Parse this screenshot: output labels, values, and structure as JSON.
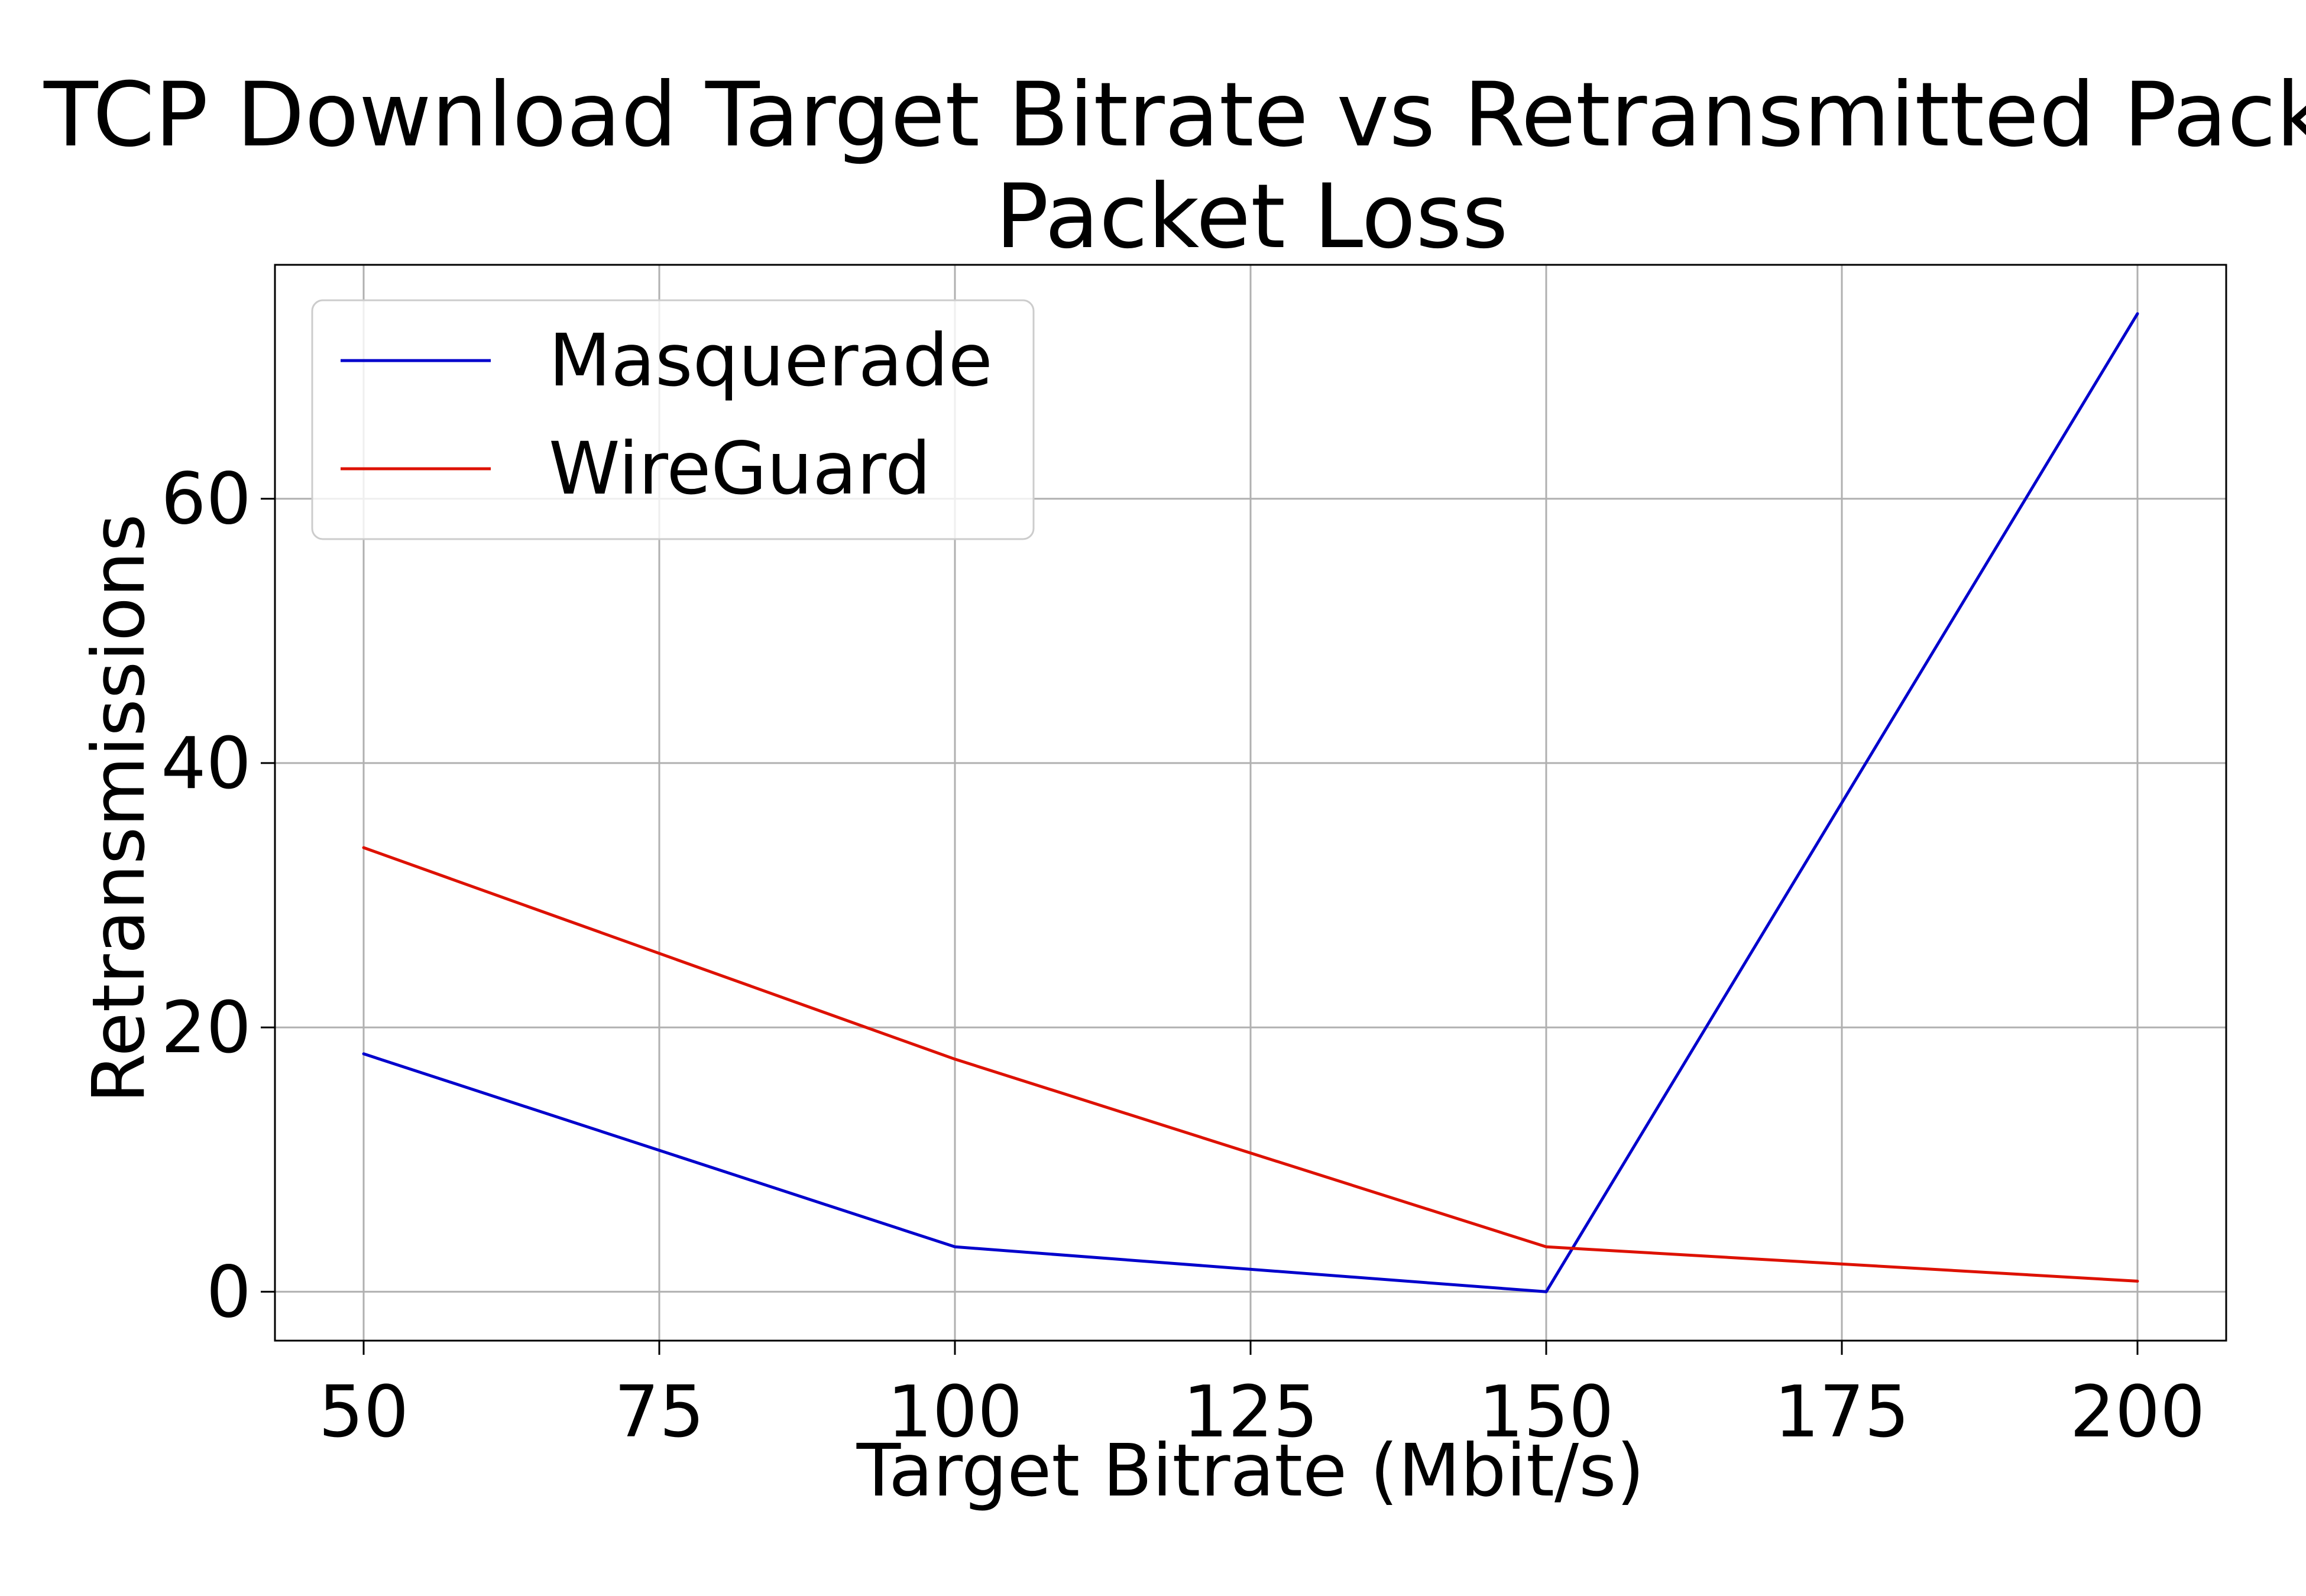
{
  "chart_data": {
    "type": "line",
    "title_line1": "TCP Download Target Bitrate vs Retransmitted Packets",
    "title_line2": "Packet Loss",
    "xlabel": "Target Bitrate (Mbit/s)",
    "ylabel": "Retransmissions",
    "x": [
      50,
      100,
      150,
      200
    ],
    "xlim": [
      42.5,
      207.5
    ],
    "ylim": [
      -3.7,
      77.7
    ],
    "xticks": [
      50,
      75,
      100,
      125,
      150,
      175,
      200
    ],
    "yticks": [
      0,
      20,
      40,
      60
    ],
    "grid": true,
    "legend_position": "upper-left",
    "series": [
      {
        "name": "Masquerade",
        "color": "#0000cc",
        "values": [
          18,
          3.4,
          0,
          74
        ]
      },
      {
        "name": "WireGuard",
        "color": "#dd1100",
        "values": [
          33.6,
          17.6,
          3.4,
          0.8
        ]
      }
    ]
  }
}
